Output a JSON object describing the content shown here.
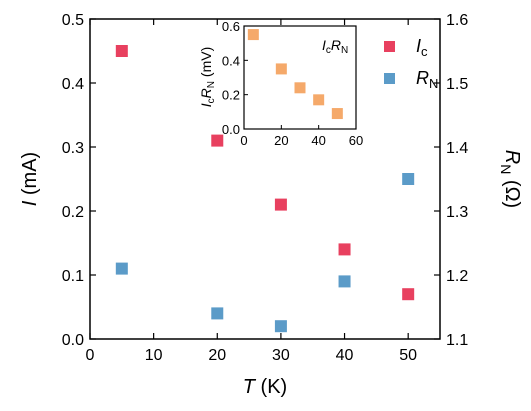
{
  "chart_data": {
    "type": "scatter",
    "main": {
      "xlabel_var": "T",
      "xlabel_unit": " (K)",
      "ylabel_left_var": "I",
      "ylabel_left_unit": " (mA)",
      "ylabel_right_var": "R",
      "ylabel_right_sub": "N",
      "ylabel_right_unit": " (Ω)",
      "xlim": [
        0,
        55
      ],
      "ylim_left": [
        0,
        0.5
      ],
      "ylim_right": [
        1.1,
        1.6
      ],
      "x_ticks": [
        0,
        10,
        20,
        30,
        40,
        50
      ],
      "x_tick_labels": [
        "0",
        "10",
        "20",
        "30",
        "40",
        "50"
      ],
      "y_left_ticks": [
        0,
        0.1,
        0.2,
        0.3,
        0.4,
        0.5
      ],
      "y_left_tick_labels": [
        "0.0",
        "0.1",
        "0.2",
        "0.3",
        "0.4",
        "0.5"
      ],
      "y_right_ticks": [
        1.1,
        1.2,
        1.3,
        1.4,
        1.5,
        1.6
      ],
      "y_right_tick_labels": [
        "1.1",
        "1.2",
        "1.3",
        "1.4",
        "1.5",
        "1.6"
      ],
      "series": [
        {
          "name_var": "I",
          "name_sub": "c",
          "axis": "left",
          "color": "#e8405f",
          "x": [
            5,
            20,
            30,
            40,
            50
          ],
          "y": [
            0.45,
            0.31,
            0.21,
            0.14,
            0.07
          ]
        },
        {
          "name_var": "R",
          "name_sub": "N",
          "axis": "right",
          "color": "#5b9bc8",
          "x": [
            5,
            20,
            30,
            40,
            50
          ],
          "y": [
            1.21,
            1.14,
            1.12,
            1.19,
            1.35
          ]
        }
      ],
      "legend_position": "top-right"
    },
    "inset": {
      "ylabel": "IcRN (mV)",
      "xlim": [
        0,
        60
      ],
      "ylim": [
        0,
        0.6
      ],
      "x_ticks": [
        0,
        20,
        40,
        60
      ],
      "x_tick_labels": [
        "0",
        "20",
        "40",
        "60"
      ],
      "y_ticks": [
        0,
        0.2,
        0.4,
        0.6
      ],
      "y_tick_labels": [
        "0.0",
        "0.2",
        "0.4",
        "0.6"
      ],
      "series": [
        {
          "name": "IcRN",
          "color": "#f5a96a",
          "x": [
            5,
            20,
            30,
            40,
            50
          ],
          "y": [
            0.55,
            0.35,
            0.24,
            0.17,
            0.09
          ]
        }
      ]
    }
  }
}
